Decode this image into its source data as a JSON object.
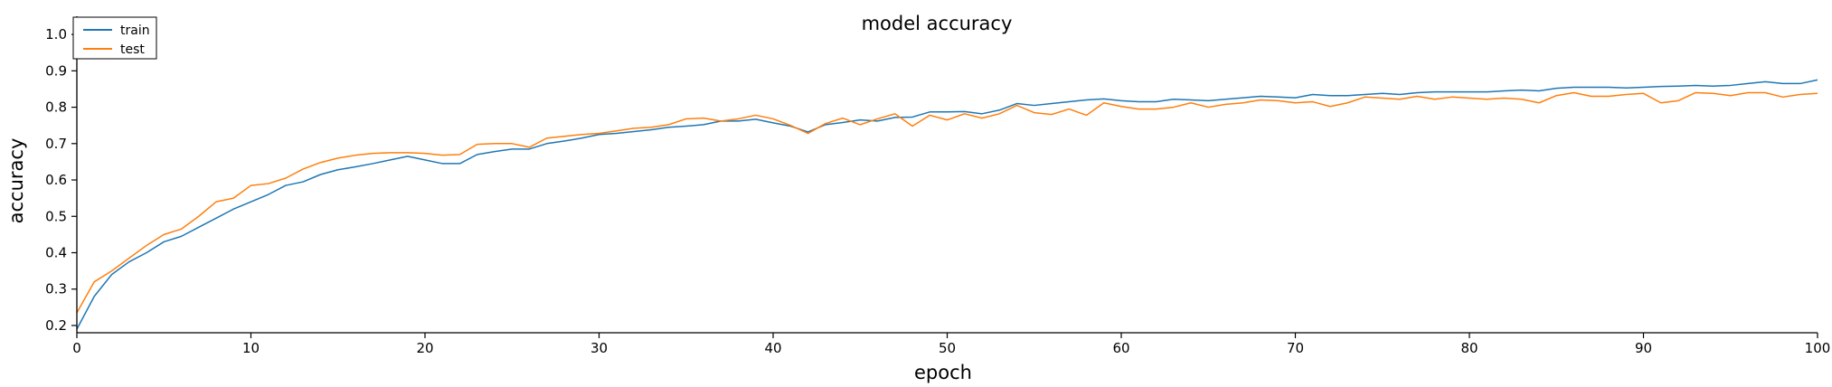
{
  "chart_data": {
    "type": "line",
    "title": "model accuracy",
    "xlabel": "epoch",
    "ylabel": "accuracy",
    "xlim": [
      0,
      100
    ],
    "ylim": [
      0.18,
      1.05
    ],
    "xticks": [
      0,
      10,
      20,
      30,
      40,
      50,
      60,
      70,
      80,
      90,
      100
    ],
    "yticks": [
      0.2,
      0.3,
      0.4,
      0.5,
      0.6,
      0.7,
      0.8,
      0.9,
      1.0
    ],
    "ytick_labels": [
      "0.2",
      "0.3",
      "0.4",
      "0.5",
      "0.6",
      "0.7",
      "0.8",
      "0.9",
      "1.0"
    ],
    "grid": false,
    "legend_position": "top-left",
    "series": [
      {
        "name": "train",
        "color": "#1f77b4",
        "values": [
          0.19,
          0.28,
          0.34,
          0.375,
          0.4,
          0.43,
          0.445,
          0.47,
          0.495,
          0.52,
          0.54,
          0.56,
          0.585,
          0.595,
          0.615,
          0.628,
          0.636,
          0.645,
          0.655,
          0.665,
          0.655,
          0.645,
          0.645,
          0.67,
          0.678,
          0.685,
          0.685,
          0.7,
          0.707,
          0.715,
          0.725,
          0.728,
          0.733,
          0.738,
          0.745,
          0.748,
          0.752,
          0.762,
          0.762,
          0.767,
          0.757,
          0.748,
          0.732,
          0.752,
          0.758,
          0.765,
          0.762,
          0.772,
          0.773,
          0.787,
          0.787,
          0.788,
          0.782,
          0.792,
          0.81,
          0.805,
          0.81,
          0.815,
          0.82,
          0.823,
          0.818,
          0.815,
          0.815,
          0.822,
          0.82,
          0.818,
          0.822,
          0.826,
          0.83,
          0.828,
          0.826,
          0.835,
          0.832,
          0.832,
          0.835,
          0.838,
          0.835,
          0.84,
          0.842,
          0.842,
          0.842,
          0.842,
          0.845,
          0.847,
          0.845,
          0.852,
          0.855,
          0.855,
          0.855,
          0.853,
          0.855,
          0.857,
          0.858,
          0.86,
          0.858,
          0.86,
          0.865,
          0.87,
          0.865,
          0.865,
          0.875
        ]
      },
      {
        "name": "test",
        "color": "#ff7f0e",
        "values": [
          0.235,
          0.32,
          0.35,
          0.385,
          0.42,
          0.45,
          0.465,
          0.5,
          0.54,
          0.55,
          0.585,
          0.59,
          0.605,
          0.63,
          0.648,
          0.66,
          0.668,
          0.673,
          0.675,
          0.675,
          0.673,
          0.668,
          0.67,
          0.698,
          0.7,
          0.7,
          0.69,
          0.715,
          0.72,
          0.725,
          0.728,
          0.735,
          0.742,
          0.745,
          0.752,
          0.768,
          0.77,
          0.762,
          0.768,
          0.778,
          0.768,
          0.75,
          0.728,
          0.755,
          0.77,
          0.752,
          0.768,
          0.782,
          0.748,
          0.778,
          0.765,
          0.782,
          0.77,
          0.782,
          0.805,
          0.785,
          0.78,
          0.795,
          0.778,
          0.812,
          0.802,
          0.795,
          0.795,
          0.8,
          0.812,
          0.8,
          0.808,
          0.812,
          0.82,
          0.818,
          0.812,
          0.815,
          0.802,
          0.812,
          0.828,
          0.825,
          0.822,
          0.83,
          0.822,
          0.828,
          0.825,
          0.822,
          0.825,
          0.822,
          0.812,
          0.832,
          0.84,
          0.83,
          0.83,
          0.835,
          0.838,
          0.812,
          0.818,
          0.84,
          0.838,
          0.832,
          0.84,
          0.84,
          0.828,
          0.835,
          0.838
        ]
      }
    ]
  }
}
